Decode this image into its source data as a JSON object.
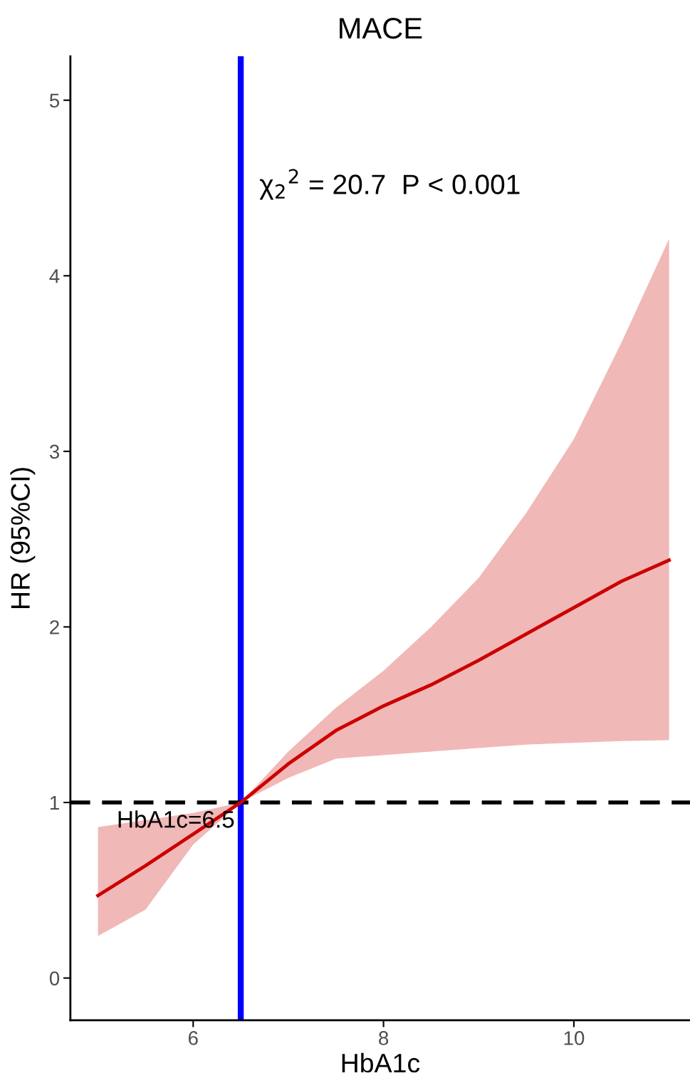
{
  "chart_data": {
    "type": "line",
    "title": "MACE",
    "xlabel": "HbA1c",
    "ylabel": "HR (95%CI)",
    "x": [
      5,
      5.5,
      6,
      6.5,
      7,
      7.5,
      8,
      8.5,
      9,
      9.5,
      10,
      10.5,
      11
    ],
    "series": [
      {
        "color": "#cc0000",
        "values": [
          0.47,
          0.64,
          0.82,
          1.0,
          1.22,
          1.41,
          1.55,
          1.67,
          1.81,
          1.96,
          2.11,
          2.26,
          2.38
        ],
        "lower": [
          0.24,
          0.39,
          0.76,
          1.0,
          1.14,
          1.25,
          1.27,
          1.29,
          1.31,
          1.33,
          1.34,
          1.35,
          1.355
        ],
        "upper": [
          0.86,
          0.9,
          0.94,
          1.0,
          1.29,
          1.54,
          1.75,
          2.0,
          2.28,
          2.65,
          3.07,
          3.62,
          4.21
        ]
      }
    ],
    "xlim": [
      4.71,
      11.22
    ],
    "ylim": [
      -0.24,
      5.25
    ],
    "xticks": [
      6,
      8,
      10
    ],
    "yticks": [
      0,
      1,
      2,
      3,
      4,
      5
    ],
    "grid": false,
    "legend": false,
    "marker": "none",
    "line_style": "solid",
    "ref_lines": [
      {
        "axis": "x",
        "value": 6.5,
        "label": "HbA1c=6.5",
        "color": "#0000ff",
        "line_style": "solid"
      },
      {
        "axis": "y",
        "value": 1,
        "color": "#000000",
        "line_style": "dashed"
      }
    ],
    "annotations": [
      "χ$_{2}$$^{2}$ = 20.7  P < 0.001"
    ]
  }
}
